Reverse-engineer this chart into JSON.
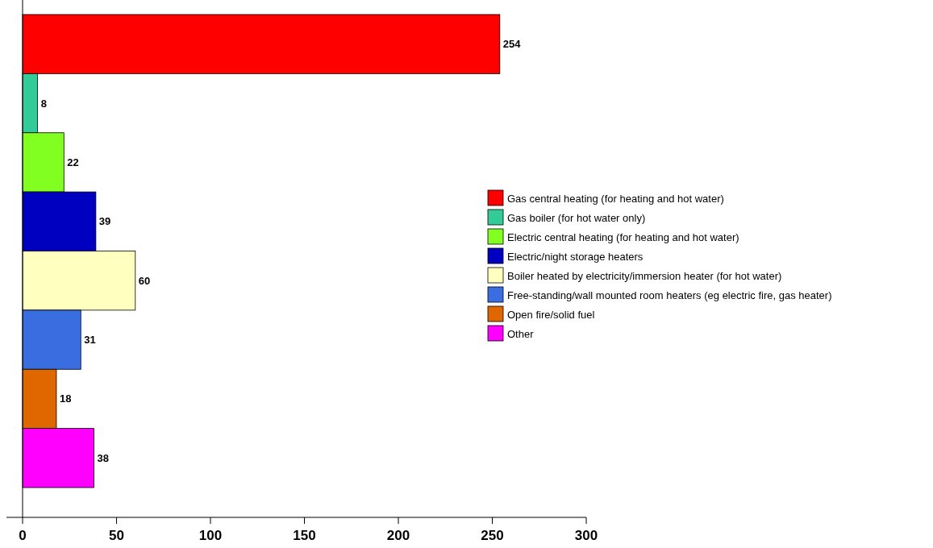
{
  "chart_data": {
    "type": "bar",
    "orientation": "horizontal",
    "stacked": true,
    "categories": [
      null,
      null,
      null,
      null,
      null,
      null,
      null,
      null
    ],
    "series": [
      {
        "name": "Gas central heating (for heating and hot water)",
        "color": "#ff0000",
        "values": [
          254,
          null,
          null,
          null,
          null,
          null,
          null,
          null
        ]
      },
      {
        "name": "Gas boiler (for hot water only)",
        "color": "#33cc99",
        "values": [
          null,
          8,
          null,
          null,
          null,
          null,
          null,
          null
        ]
      },
      {
        "name": "Electric central heating (for heating and hot water)",
        "color": "#80ff20",
        "values": [
          null,
          null,
          22,
          null,
          null,
          null,
          null,
          null
        ]
      },
      {
        "name": "Electric/night storage heaters",
        "color": "#0000c0",
        "values": [
          null,
          null,
          null,
          39,
          null,
          null,
          null,
          null
        ]
      },
      {
        "name": "Boiler heated by electricity/immersion heater (for hot water)",
        "color": "#ffffc0",
        "values": [
          null,
          null,
          null,
          null,
          60,
          null,
          null,
          null
        ]
      },
      {
        "name": "Free-standing/wall mounted room heaters (eg electric fire, gas heater)",
        "color": "#3a6ee0",
        "values": [
          null,
          null,
          null,
          null,
          null,
          31,
          null,
          null
        ]
      },
      {
        "name": "Open fire/solid fuel",
        "color": "#e06600",
        "values": [
          null,
          null,
          null,
          null,
          null,
          null,
          18,
          null
        ]
      },
      {
        "name": "Other",
        "color": "#ff00ff",
        "values": [
          null,
          null,
          null,
          null,
          null,
          null,
          null,
          38
        ]
      }
    ],
    "data_labels": true,
    "xlim": [
      0,
      300
    ],
    "xticks": [
      0,
      50,
      100,
      150,
      200,
      250,
      300
    ],
    "grid": false,
    "legend": "right"
  }
}
